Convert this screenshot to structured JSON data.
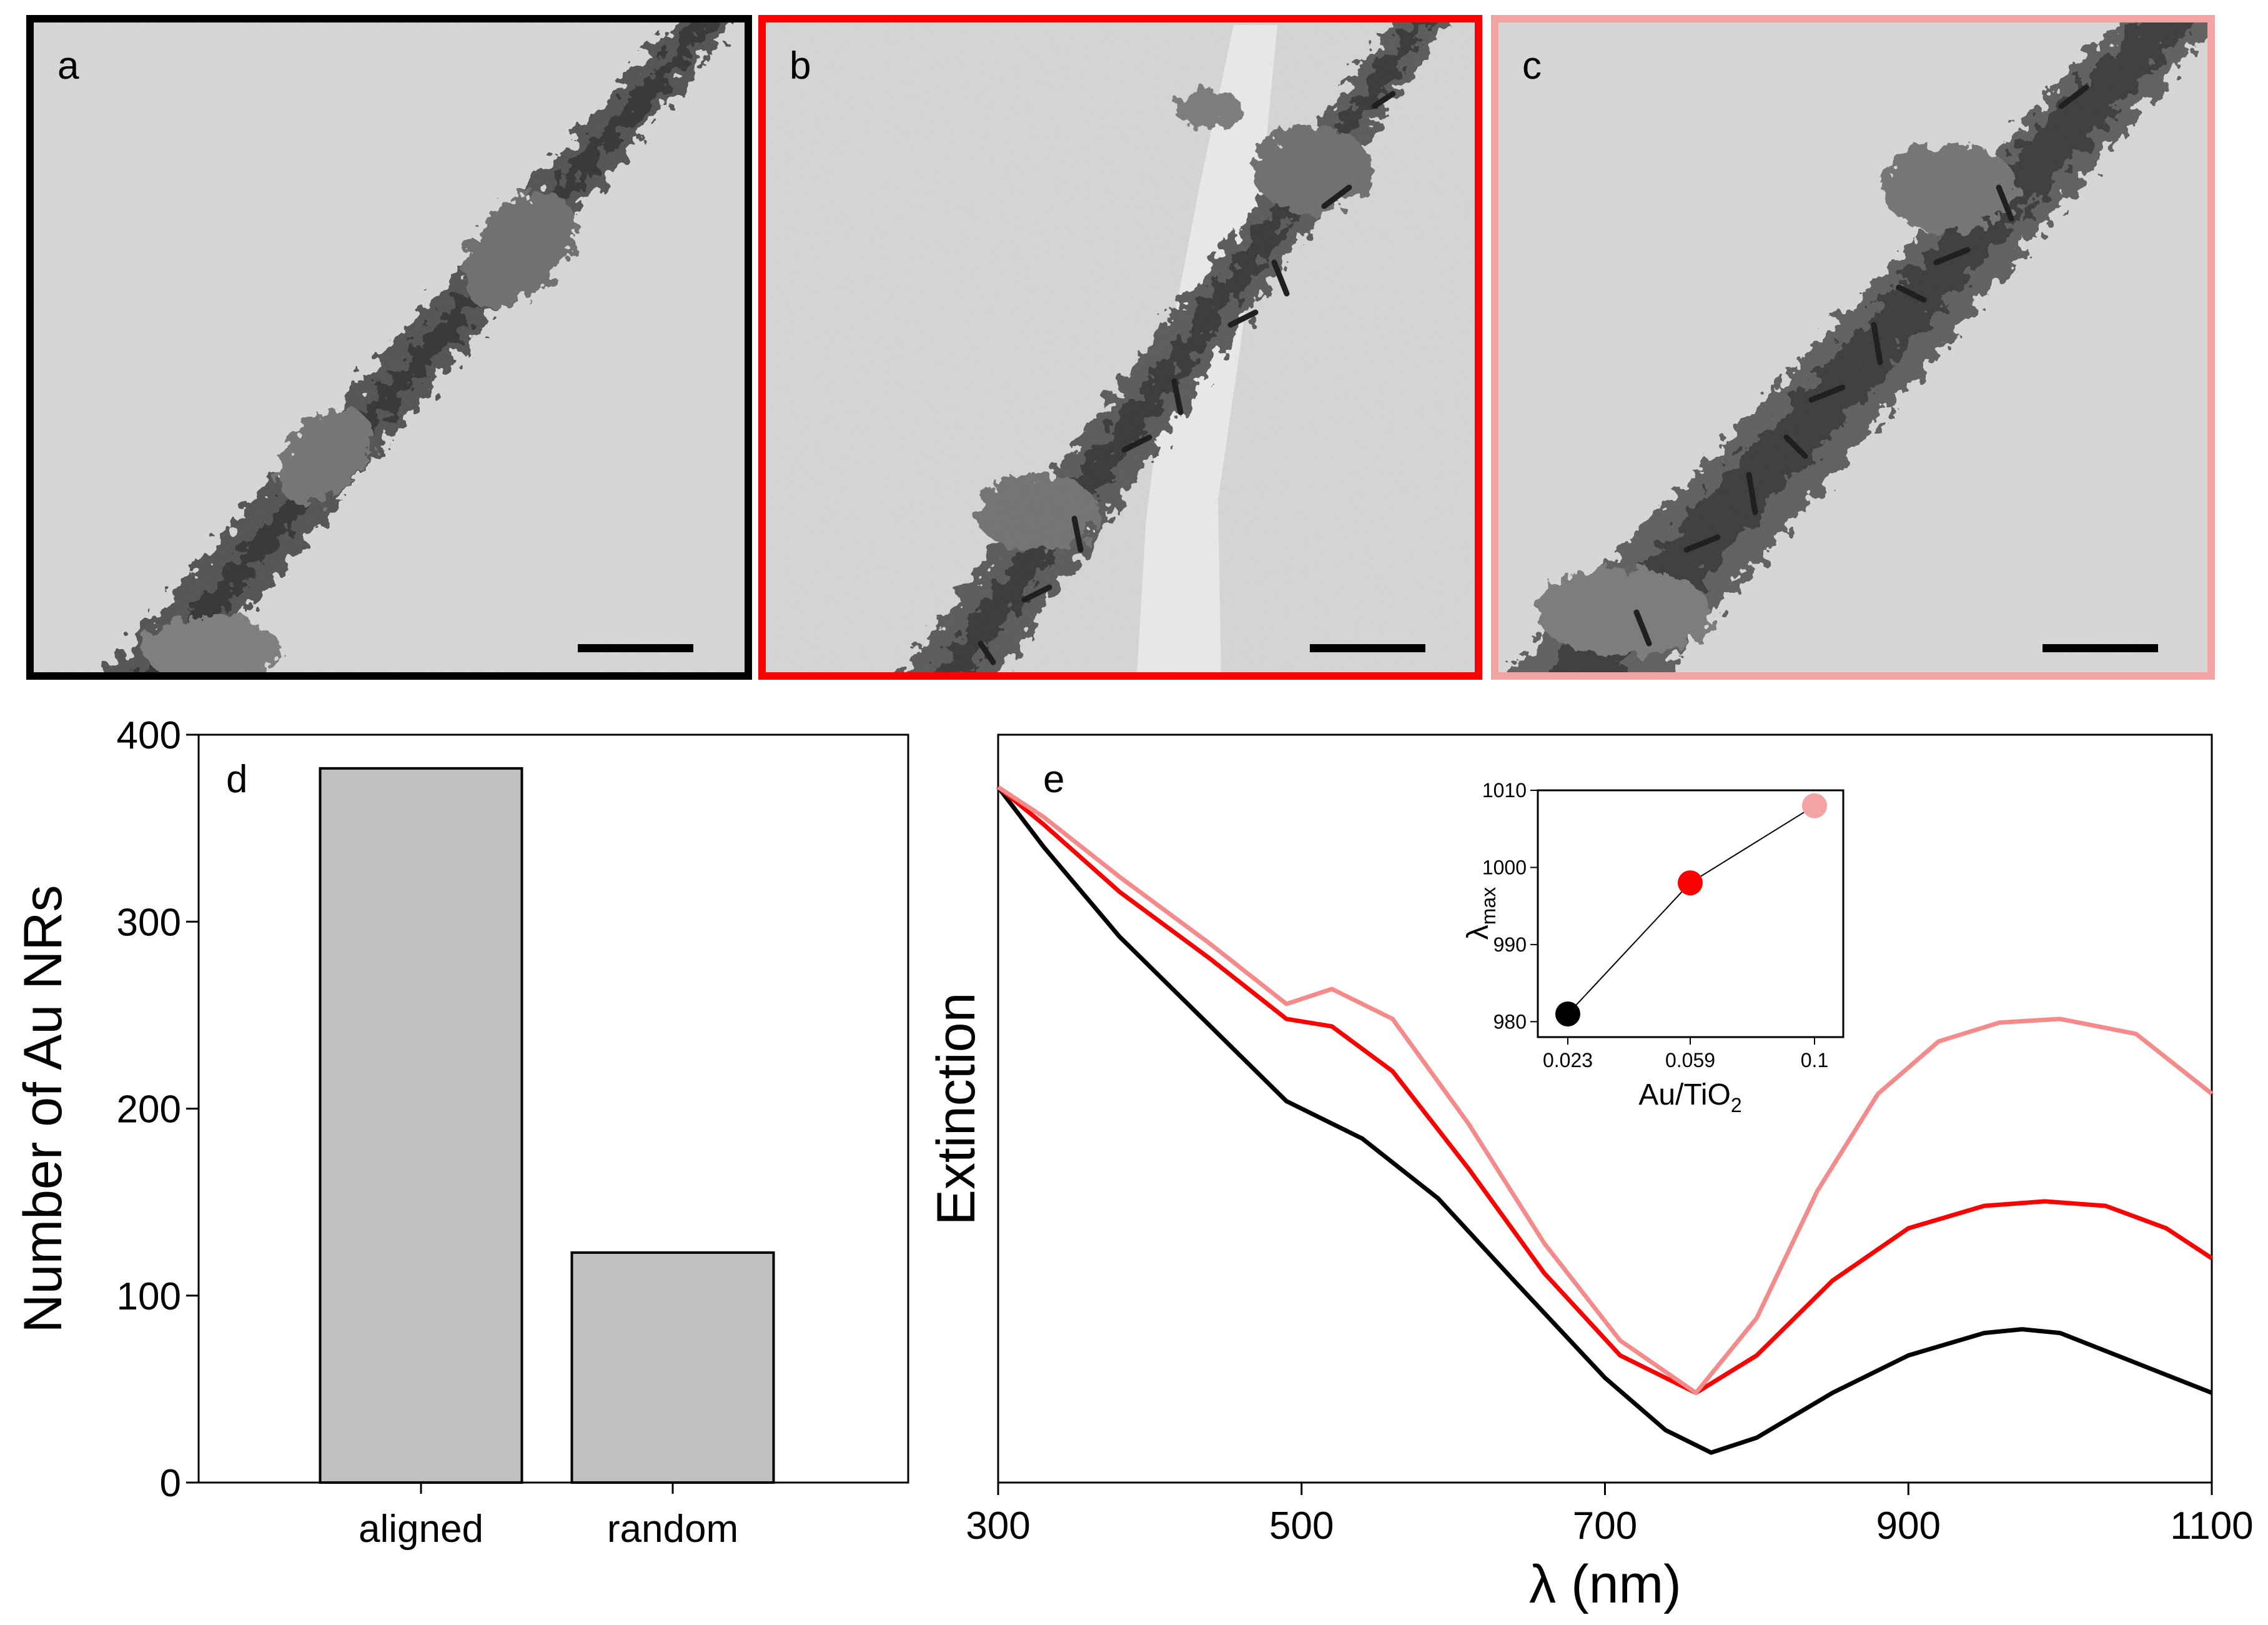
{
  "panels": {
    "a": {
      "label": "a",
      "border_color": "#000000"
    },
    "b": {
      "label": "b",
      "border_color": "#ff0000"
    },
    "c": {
      "label": "c",
      "border_color": "#f4a3a3"
    }
  },
  "chart_data": [
    {
      "panel": "d",
      "type": "bar",
      "categories": [
        "aligned",
        "random"
      ],
      "values": [
        382,
        123
      ],
      "ylabel": "Number of Au NRs",
      "xlabel": "",
      "ylim": [
        0,
        400
      ],
      "yticks": [
        "0",
        "100",
        "200",
        "300",
        "400"
      ],
      "bar_color": "#c0c0c0"
    },
    {
      "panel": "e",
      "type": "line",
      "xlabel": "λ (nm)",
      "ylabel": "Extinction",
      "xlim": [
        300,
        1100
      ],
      "ylim": [
        0,
        1
      ],
      "xticks": [
        "300",
        "500",
        "700",
        "900",
        "1100"
      ],
      "series": [
        {
          "name": "Au/TiO2 0.023",
          "color": "#000000",
          "x": [
            300,
            330,
            380,
            440,
            490,
            540,
            590,
            640,
            700,
            740,
            770,
            800,
            850,
            900,
            950,
            975,
            1000,
            1050,
            1100
          ],
          "y": [
            0.93,
            0.85,
            0.73,
            0.61,
            0.51,
            0.46,
            0.38,
            0.27,
            0.14,
            0.07,
            0.04,
            0.06,
            0.12,
            0.17,
            0.2,
            0.205,
            0.2,
            0.16,
            0.12
          ]
        },
        {
          "name": "Au/TiO2 0.059",
          "color": "#ff0000",
          "x": [
            300,
            330,
            380,
            440,
            490,
            520,
            560,
            610,
            660,
            710,
            760,
            800,
            850,
            900,
            950,
            990,
            1030,
            1070,
            1100
          ],
          "y": [
            0.93,
            0.88,
            0.79,
            0.7,
            0.62,
            0.61,
            0.55,
            0.42,
            0.28,
            0.17,
            0.12,
            0.17,
            0.27,
            0.34,
            0.37,
            0.376,
            0.37,
            0.34,
            0.3
          ]
        },
        {
          "name": "Au/TiO2 0.1",
          "color": "#f48a8a",
          "x": [
            300,
            330,
            380,
            440,
            490,
            520,
            560,
            610,
            660,
            710,
            760,
            800,
            840,
            880,
            920,
            960,
            1000,
            1050,
            1100
          ],
          "y": [
            0.93,
            0.89,
            0.81,
            0.72,
            0.64,
            0.66,
            0.62,
            0.48,
            0.32,
            0.19,
            0.12,
            0.22,
            0.39,
            0.52,
            0.59,
            0.615,
            0.62,
            0.6,
            0.52
          ]
        }
      ]
    },
    {
      "panel": "e-inset",
      "type": "scatter",
      "xlabel": "Au/TiO2",
      "ylabel": "λmax",
      "categories": [
        "0.023",
        "0.059",
        "0.1"
      ],
      "values": [
        981,
        998,
        1008
      ],
      "point_colors": [
        "#000000",
        "#ff0000",
        "#f4a3a3"
      ],
      "ylim": [
        978,
        1010
      ],
      "yticks": [
        "980",
        "990",
        "1000",
        "1010"
      ]
    }
  ]
}
